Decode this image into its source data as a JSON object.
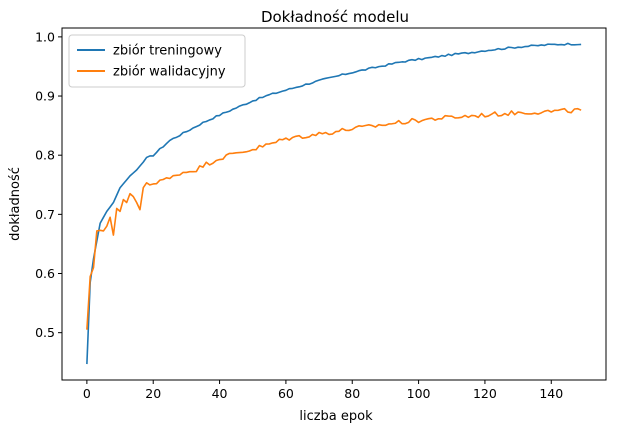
{
  "chart_data": {
    "type": "line",
    "title": "Dokładność modelu",
    "xlabel": "liczba epok",
    "ylabel": "dokładność",
    "xlim": [
      -7.5,
      156.5
    ],
    "ylim": [
      0.42,
      1.015
    ],
    "xticks": [
      0,
      20,
      40,
      60,
      80,
      100,
      120,
      140
    ],
    "yticks": [
      0.5,
      0.6,
      0.7,
      0.8,
      0.9,
      1.0
    ],
    "ytick_labels": [
      "0.5",
      "0.6",
      "0.7",
      "0.8",
      "0.9",
      "1.0"
    ],
    "grid": false,
    "legend_position": "top-left",
    "series": [
      {
        "name": "zbiór treningowy",
        "color": "#1f77b4",
        "anchors": [
          [
            0,
            0.447
          ],
          [
            1,
            0.585
          ],
          [
            2,
            0.625
          ],
          [
            3,
            0.655
          ],
          [
            4,
            0.685
          ],
          [
            5,
            0.695
          ],
          [
            6,
            0.705
          ],
          [
            8,
            0.72
          ],
          [
            10,
            0.745
          ],
          [
            13,
            0.765
          ],
          [
            15,
            0.775
          ],
          [
            18,
            0.795
          ],
          [
            20,
            0.8
          ],
          [
            25,
            0.825
          ],
          [
            30,
            0.84
          ],
          [
            35,
            0.855
          ],
          [
            40,
            0.868
          ],
          [
            45,
            0.88
          ],
          [
            50,
            0.892
          ],
          [
            55,
            0.902
          ],
          [
            60,
            0.91
          ],
          [
            65,
            0.918
          ],
          [
            70,
            0.926
          ],
          [
            75,
            0.933
          ],
          [
            80,
            0.94
          ],
          [
            85,
            0.946
          ],
          [
            90,
            0.952
          ],
          [
            95,
            0.958
          ],
          [
            100,
            0.962
          ],
          [
            105,
            0.966
          ],
          [
            110,
            0.97
          ],
          [
            115,
            0.973
          ],
          [
            120,
            0.977
          ],
          [
            125,
            0.98
          ],
          [
            130,
            0.983
          ],
          [
            135,
            0.985
          ],
          [
            140,
            0.987
          ],
          [
            145,
            0.988
          ],
          [
            149,
            0.988
          ]
        ],
        "noise": 0.0015
      },
      {
        "name": "zbiór walidacyjny",
        "color": "#ff7f0e",
        "anchors": [
          [
            0,
            0.505
          ],
          [
            1,
            0.595
          ],
          [
            2,
            0.61
          ],
          [
            3,
            0.672
          ],
          [
            4,
            0.673
          ],
          [
            5,
            0.672
          ],
          [
            6,
            0.68
          ],
          [
            7,
            0.695
          ],
          [
            8,
            0.665
          ],
          [
            9,
            0.71
          ],
          [
            10,
            0.705
          ],
          [
            11,
            0.725
          ],
          [
            12,
            0.72
          ],
          [
            13,
            0.735
          ],
          [
            14,
            0.73
          ],
          [
            15,
            0.72
          ],
          [
            16,
            0.708
          ],
          [
            17,
            0.745
          ],
          [
            18,
            0.75
          ],
          [
            20,
            0.752
          ],
          [
            22,
            0.758
          ],
          [
            25,
            0.76
          ],
          [
            28,
            0.77
          ],
          [
            30,
            0.772
          ],
          [
            33,
            0.776
          ],
          [
            36,
            0.785
          ],
          [
            40,
            0.795
          ],
          [
            43,
            0.8
          ],
          [
            46,
            0.805
          ],
          [
            50,
            0.81
          ],
          [
            53,
            0.815
          ],
          [
            56,
            0.82
          ],
          [
            60,
            0.828
          ],
          [
            65,
            0.832
          ],
          [
            70,
            0.836
          ],
          [
            75,
            0.84
          ],
          [
            80,
            0.845
          ],
          [
            85,
            0.848
          ],
          [
            90,
            0.852
          ],
          [
            95,
            0.856
          ],
          [
            100,
            0.859
          ],
          [
            105,
            0.862
          ],
          [
            110,
            0.864
          ],
          [
            115,
            0.866
          ],
          [
            120,
            0.868
          ],
          [
            125,
            0.87
          ],
          [
            130,
            0.872
          ],
          [
            135,
            0.873
          ],
          [
            140,
            0.874
          ],
          [
            145,
            0.875
          ],
          [
            149,
            0.876
          ]
        ],
        "noise": 0.004
      }
    ]
  }
}
